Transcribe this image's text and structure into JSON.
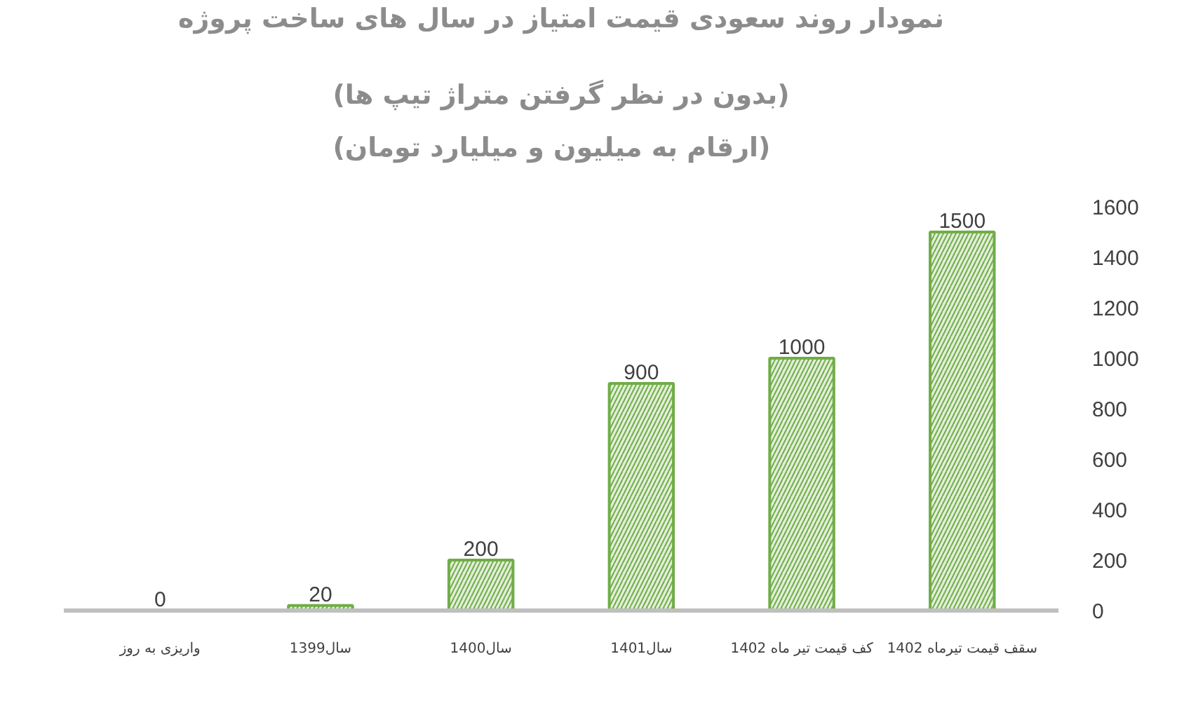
{
  "chart_data": {
    "type": "bar",
    "title": "نمودار روند سعودی قیمت امتیاز در سال های ساخت پروژه",
    "subtitle": "(بدون در نظر گرفتن متراژ تیپ ها)\n(ارقام به میلیون و میلیارد تومان)",
    "categories": [
      "واریزی به روز",
      "سال1399",
      "سال1400",
      "سال1401",
      "کف قیمت تیر ماه 1402",
      "سقف قیمت تیرماه 1402"
    ],
    "values": [
      0,
      20,
      200,
      900,
      1000,
      1500
    ],
    "color": "#70ad47",
    "ylim": [
      0,
      1600
    ],
    "yticks": [
      0,
      200,
      400,
      600,
      800,
      1000,
      1200,
      1400,
      1600
    ],
    "data_labels": true
  }
}
